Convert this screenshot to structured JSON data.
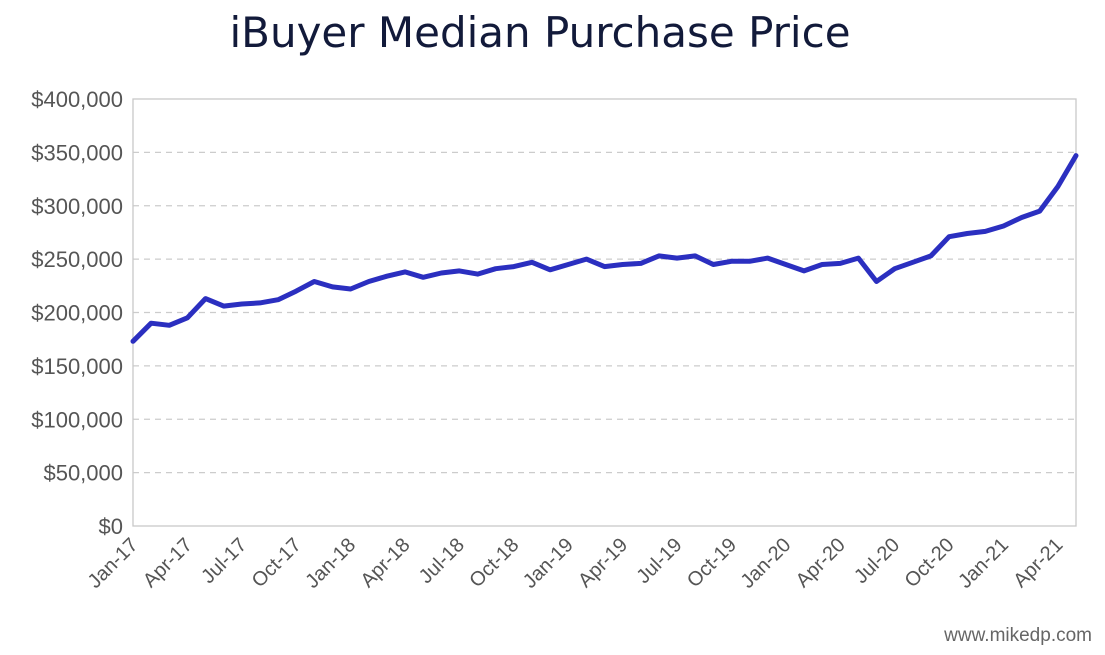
{
  "chart_data": {
    "type": "line",
    "title": "iBuyer Median Purchase Price",
    "xlabel": "",
    "ylabel": "",
    "ylim": [
      0,
      400000
    ],
    "grid": true,
    "y_ticks": [
      "$0",
      "$50,000",
      "$100,000",
      "$150,000",
      "$200,000",
      "$250,000",
      "$300,000",
      "$350,000",
      "$400,000"
    ],
    "x_tick_labels": [
      "Jan-17",
      "Apr-17",
      "Jul-17",
      "Oct-17",
      "Jan-18",
      "Apr-18",
      "Jul-18",
      "Oct-18",
      "Jan-19",
      "Apr-19",
      "Jul-19",
      "Oct-19",
      "Jan-20",
      "Apr-20",
      "Jul-20",
      "Oct-20",
      "Jan-21",
      "Apr-21"
    ],
    "series": [
      {
        "name": "iBuyer Median Purchase Price",
        "color": "#2b2fc0",
        "x": [
          "Jan-17",
          "Feb-17",
          "Mar-17",
          "Apr-17",
          "May-17",
          "Jun-17",
          "Jul-17",
          "Aug-17",
          "Sep-17",
          "Oct-17",
          "Nov-17",
          "Dec-17",
          "Jan-18",
          "Feb-18",
          "Mar-18",
          "Apr-18",
          "May-18",
          "Jun-18",
          "Jul-18",
          "Aug-18",
          "Sep-18",
          "Oct-18",
          "Nov-18",
          "Dec-18",
          "Jan-19",
          "Feb-19",
          "Mar-19",
          "Apr-19",
          "May-19",
          "Jun-19",
          "Jul-19",
          "Aug-19",
          "Sep-19",
          "Oct-19",
          "Nov-19",
          "Dec-19",
          "Jan-20",
          "Feb-20",
          "Mar-20",
          "Apr-20",
          "May-20",
          "Jun-20",
          "Jul-20",
          "Aug-20",
          "Sep-20",
          "Oct-20",
          "Nov-20",
          "Dec-20",
          "Jan-21",
          "Feb-21",
          "Mar-21",
          "Apr-21",
          "May-21"
        ],
        "values": [
          173000,
          190000,
          188000,
          195000,
          213000,
          206000,
          208000,
          209000,
          212000,
          220000,
          229000,
          224000,
          222000,
          229000,
          234000,
          238000,
          233000,
          237000,
          239000,
          236000,
          241000,
          243000,
          247000,
          240000,
          245000,
          250000,
          243000,
          245000,
          246000,
          253000,
          251000,
          253000,
          245000,
          248000,
          248000,
          251000,
          245000,
          239000,
          245000,
          246000,
          251000,
          229000,
          241000,
          247000,
          253000,
          271000,
          274000,
          276000,
          281000,
          289000,
          295000,
          318000,
          347000
        ]
      }
    ]
  },
  "watermark": "www.mikedp.com"
}
